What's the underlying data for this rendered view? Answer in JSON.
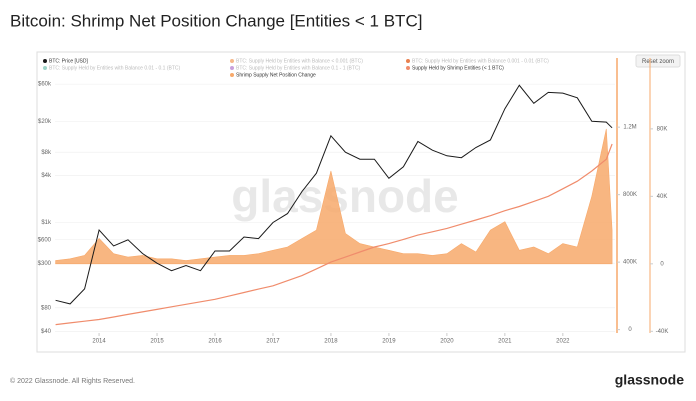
{
  "chart_data": {
    "type": "line",
    "title": "Bitcoin: Shrimp Net Position Change [Entities < 1 BTC]",
    "watermark": "glassnode",
    "reset_zoom": "Reset zoom",
    "copyright": "© 2022 Glassnode. All Rights Reserved.",
    "logo": "glassnode",
    "log_scale": true,
    "grid": true,
    "x": [
      2013.25,
      2013.5,
      2013.75,
      2014,
      2014.25,
      2014.5,
      2014.75,
      2015,
      2015.25,
      2015.5,
      2015.75,
      2016,
      2016.25,
      2016.5,
      2016.75,
      2017,
      2017.25,
      2017.5,
      2017.75,
      2018,
      2018.25,
      2018.5,
      2018.75,
      2019,
      2019.25,
      2019.5,
      2019.75,
      2020,
      2020.25,
      2020.5,
      2020.75,
      2021,
      2021.25,
      2021.5,
      2021.75,
      2022,
      2022.25,
      2022.5,
      2022.75,
      2022.85
    ],
    "xlim": [
      2013.24,
      2022.9
    ],
    "xticks": [
      2014,
      2015,
      2016,
      2017,
      2018,
      2019,
      2020,
      2021,
      2022
    ],
    "ylim": [
      38,
      130000
    ],
    "yticks": [
      {
        "value": 40,
        "label": "$40"
      },
      {
        "value": 80,
        "label": "$80"
      },
      {
        "value": 300,
        "label": "$300"
      },
      {
        "value": 600,
        "label": "$600"
      },
      {
        "value": 1000,
        "label": "$1k"
      },
      {
        "value": 4000,
        "label": "$4k"
      },
      {
        "value": 8000,
        "label": "$8k"
      },
      {
        "value": 20000,
        "label": "$20k"
      },
      {
        "value": 60000,
        "label": "$60k"
      }
    ],
    "y2lim": [
      -20000,
      1610000
    ],
    "y2ticks": [
      0,
      {
        "value": 400000,
        "label": "400K"
      },
      {
        "value": 800000,
        "label": "800K"
      },
      {
        "value": 1200000,
        "label": "1.2M"
      }
    ],
    "y3lim": [
      -41000,
      122000
    ],
    "y3ticks": [
      {
        "value": -40000,
        "label": "-40K"
      },
      0,
      {
        "value": 40000,
        "label": "40K"
      },
      {
        "value": 80000,
        "label": "80K"
      }
    ],
    "series": [
      {
        "name": "BTC: Price [USD]",
        "color": "#1a1a1a",
        "axis": "y",
        "values": [
          100,
          90,
          140,
          800,
          500,
          600,
          400,
          300,
          240,
          280,
          240,
          430,
          430,
          650,
          620,
          1000,
          1300,
          2500,
          4300,
          13000,
          8000,
          6500,
          6500,
          3700,
          5200,
          11000,
          8500,
          7200,
          6800,
          9200,
          11500,
          29000,
          58000,
          34000,
          47000,
          46000,
          40000,
          20000,
          19500,
          16500
        ]
      },
      {
        "name": "Supply Held by Shrimp Entities (< 1 BTC)",
        "color": "#f08c6c",
        "axis": "y2",
        "values": [
          30000,
          40000,
          50000,
          60000,
          75000,
          90000,
          105000,
          120000,
          135000,
          150000,
          165000,
          180000,
          200000,
          220000,
          240000,
          260000,
          290000,
          320000,
          360000,
          400000,
          430000,
          460000,
          490000,
          510000,
          535000,
          560000,
          580000,
          600000,
          625000,
          650000,
          675000,
          705000,
          730000,
          760000,
          790000,
          835000,
          880000,
          940000,
          1010000,
          1100000
        ]
      },
      {
        "name": "Shrimp Supply Net Position Change",
        "color": "#f7a96b",
        "axis": "y3",
        "values": [
          2000,
          3000,
          5000,
          15000,
          6000,
          4000,
          5000,
          3000,
          3000,
          2000,
          3000,
          4000,
          5000,
          5000,
          6000,
          8000,
          10000,
          15000,
          20000,
          55000,
          18000,
          12000,
          10000,
          8000,
          6000,
          6000,
          5000,
          6000,
          12000,
          7000,
          20000,
          25000,
          8000,
          10000,
          6000,
          12000,
          10000,
          40000,
          80000,
          20000
        ]
      }
    ],
    "legend_hidden": [
      {
        "name": "BTC: Supply Held by Entities with Balance < 0.001 (BTC)",
        "color": "#f5b88a"
      },
      {
        "name": "BTC: Supply Held by Entities with Balance 0.001 - 0.01 (BTC)",
        "color": "#e8804f"
      },
      {
        "name": "BTC: Supply Held by Entities with Balance 0.01 - 0.1 (BTC)",
        "color": "#9fd4c9"
      },
      {
        "name": "BTC: Supply Held by Entities with Balance 0.1 - 1 (BTC)",
        "color": "#c9a0dc"
      }
    ]
  }
}
